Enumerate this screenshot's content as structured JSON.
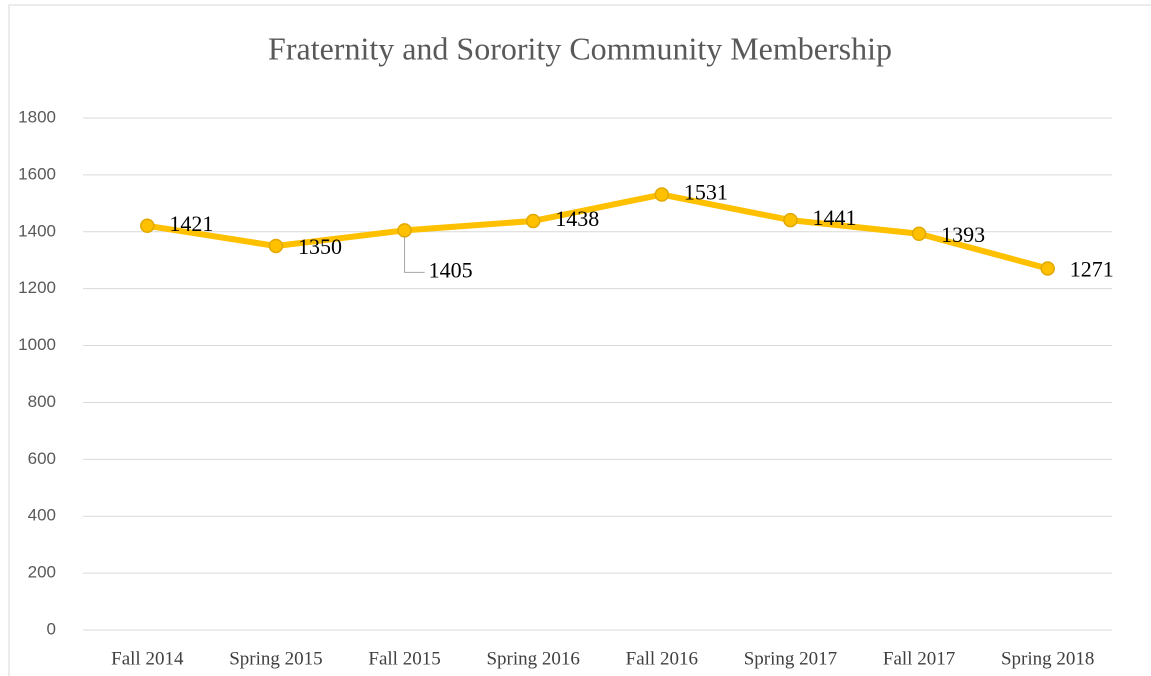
{
  "chart_data": {
    "type": "line",
    "title": "Fraternity and Sorority Community Membership",
    "categories": [
      "Fall 2014",
      "Spring 2015",
      "Fall 2015",
      "Spring 2016",
      "Fall 2016",
      "Spring 2017",
      "Fall 2017",
      "Spring 2018"
    ],
    "values": [
      1421,
      1350,
      1405,
      1438,
      1531,
      1441,
      1393,
      1271
    ],
    "color": "#ffc000",
    "ylim": [
      0,
      1800
    ],
    "yticks": [
      0,
      200,
      400,
      600,
      800,
      1000,
      1200,
      1400,
      1600,
      1800
    ],
    "grid": true
  }
}
